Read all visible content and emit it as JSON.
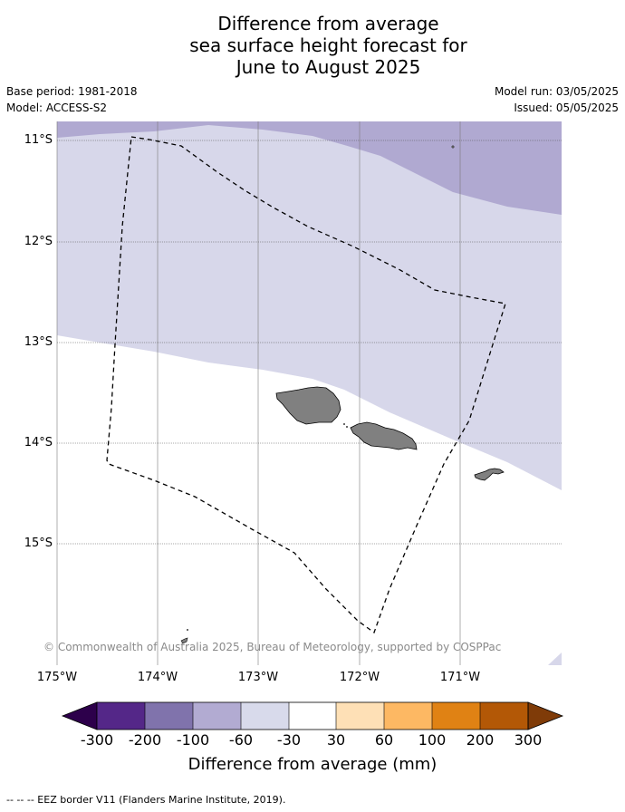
{
  "title": {
    "line1": "Difference from average",
    "line2": "sea surface height forecast for",
    "line3": "June to August 2025"
  },
  "meta": {
    "base_period": "Base period: 1981-2018",
    "model": "Model: ACCESS-S2",
    "model_run": "Model run: 03/05/2025",
    "issued": "Issued: 05/05/2025"
  },
  "map": {
    "lat_labels": [
      "11°S",
      "12°S",
      "13°S",
      "14°S",
      "15°S"
    ],
    "lon_labels": [
      "175°W",
      "174°W",
      "173°W",
      "172°W",
      "171°W"
    ],
    "copyright": "© Commonwealth of Australia 2025, Bureau of Meteorology, supported by COSPPac",
    "colors": {
      "band_-60_-30": "#d7d7ea",
      "band_-100_-60": "#b0a9d1",
      "land": "#808080",
      "ocean_neutral": "#ffffff"
    }
  },
  "colorbar": {
    "ticks": [
      "-300",
      "-200",
      "-100",
      "-60",
      "-30",
      "30",
      "60",
      "100",
      "200",
      "300"
    ],
    "label": "Difference from average (mm)",
    "colors": [
      "#2d004b",
      "#542788",
      "#8073ac",
      "#b2abd2",
      "#d8daeb",
      "#ffffff",
      "#fee0b6",
      "#fdb863",
      "#e08214",
      "#b35806",
      "#7f3b08"
    ]
  },
  "legend": {
    "eez": "-- -- -- EEZ border V11 (Flanders Marine Institute, 2019)."
  }
}
